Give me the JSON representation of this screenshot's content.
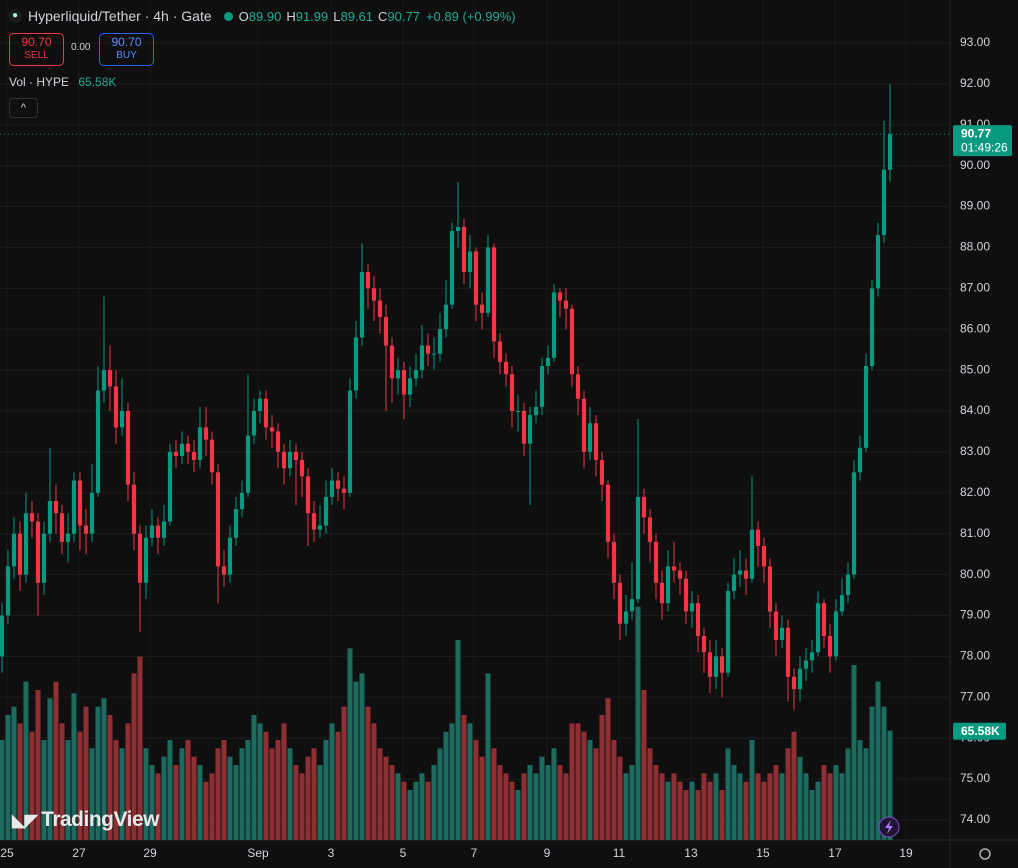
{
  "legend": {
    "symbol": "Hyperliquid/Tether · 4h · Gate",
    "ohlc": [
      {
        "key": "O",
        "value": "89.90"
      },
      {
        "key": "H",
        "value": "91.99"
      },
      {
        "key": "L",
        "value": "89.61"
      },
      {
        "key": "C",
        "value": "90.77"
      }
    ],
    "change": "+0.89 (+0.99%)",
    "sell_price": "90.70",
    "sell": "SELL",
    "spread": "0.00",
    "buy_price": "90.70",
    "buy": "BUY",
    "volume_name": "Vol · HYPE",
    "volume_value": "65.58K"
  },
  "countdown": "01:49:26",
  "volume_axis_label": "65.58K",
  "logo": "TradingView",
  "chart_data": {
    "type": "candlestick",
    "up_color": "#089981",
    "down_color": "#f23645",
    "volume_up_color": "#1d6a5f",
    "volume_down_color": "#8e2f34",
    "grid": true,
    "ylim": [
      73.51,
      94.05
    ],
    "yticks": [
      {
        "value": 74,
        "label": "74.00"
      },
      {
        "value": 75,
        "label": "75.00"
      },
      {
        "value": 76,
        "label": "76.00"
      },
      {
        "value": 77,
        "label": "77.00"
      },
      {
        "value": 78,
        "label": "78.00"
      },
      {
        "value": 79,
        "label": "79.00"
      },
      {
        "value": 80,
        "label": "80.00"
      },
      {
        "value": 81,
        "label": "81.00"
      },
      {
        "value": 82,
        "label": "82.00"
      },
      {
        "value": 83,
        "label": "83.00"
      },
      {
        "value": 84,
        "label": "84.00"
      },
      {
        "value": 85,
        "label": "85.00"
      },
      {
        "value": 86,
        "label": "86.00"
      },
      {
        "value": 87,
        "label": "87.00"
      },
      {
        "value": 88,
        "label": "88.00"
      },
      {
        "value": 89,
        "label": "89.00"
      },
      {
        "value": 90,
        "label": "90.00"
      },
      {
        "value": 91,
        "label": "91.00"
      },
      {
        "value": 92,
        "label": "92.00"
      },
      {
        "value": 93,
        "label": "93.00"
      }
    ],
    "xlim": [
      -0.33,
      158
    ],
    "xticks": [
      {
        "value": 0.83,
        "label": "25"
      },
      {
        "value": 12.83,
        "label": "27"
      },
      {
        "value": 24.67,
        "label": "29"
      },
      {
        "value": 42.67,
        "label": "Sep"
      },
      {
        "value": 54.83,
        "label": "3"
      },
      {
        "value": 66.83,
        "label": "5"
      },
      {
        "value": 78.67,
        "label": "7"
      },
      {
        "value": 90.83,
        "label": "9"
      },
      {
        "value": 102.83,
        "label": "11"
      },
      {
        "value": 114.83,
        "label": "13"
      },
      {
        "value": 126.83,
        "label": "15"
      },
      {
        "value": 138.83,
        "label": "17"
      },
      {
        "value": 150.67,
        "label": "19"
      }
    ],
    "volume_ylim": [
      0,
      240000
    ],
    "open": [
      78.0,
      79.0,
      80.2,
      81.0,
      80.0,
      81.5,
      81.3,
      79.8,
      81.0,
      81.8,
      81.5,
      80.8,
      81.0,
      82.3,
      81.2,
      81.0,
      82.0,
      84.5,
      85.0,
      84.6,
      83.6,
      84.0,
      82.2,
      81.0,
      79.8,
      80.9,
      81.2,
      80.9,
      81.3,
      83.0,
      82.9,
      83.2,
      83.0,
      82.8,
      83.6,
      83.3,
      82.5,
      80.2,
      80.0,
      80.9,
      81.6,
      82.0,
      83.4,
      84.0,
      84.3,
      83.6,
      83.5,
      83.0,
      82.6,
      83.0,
      82.8,
      82.4,
      81.5,
      81.1,
      81.2,
      81.9,
      82.3,
      82.1,
      82.0,
      84.5,
      85.8,
      87.4,
      87.0,
      86.7,
      86.3,
      85.6,
      84.8,
      85.0,
      84.4,
      84.8,
      85.0,
      85.6,
      85.4,
      85.4,
      86.0,
      86.6,
      88.4,
      88.5,
      87.4,
      87.9,
      86.6,
      86.4,
      88.0,
      85.7,
      85.2,
      84.9,
      84.0,
      84.0,
      83.2,
      83.9,
      84.1,
      85.1,
      85.3,
      86.9,
      86.7,
      86.5,
      84.9,
      84.3,
      83.0,
      83.7,
      82.8,
      82.2,
      80.8,
      79.8,
      78.8,
      79.1,
      79.4,
      81.9,
      81.4,
      80.8,
      79.8,
      79.3,
      80.2,
      80.1,
      79.9,
      79.1,
      79.3,
      78.5,
      78.1,
      77.5,
      78.0,
      77.6,
      79.6,
      80.0,
      80.1,
      79.9,
      81.1,
      80.7,
      80.2,
      79.1,
      78.4,
      78.7,
      77.5,
      77.2,
      77.7,
      77.9,
      78.1,
      79.3,
      78.5,
      78.0,
      79.1,
      79.5,
      80.0,
      82.5,
      83.1,
      85.1,
      87.0,
      88.3,
      89.9
    ],
    "high": [
      79.3,
      80.6,
      81.4,
      81.3,
      82.0,
      81.8,
      81.5,
      81.3,
      83.1,
      82.2,
      81.7,
      81.5,
      82.5,
      82.5,
      81.6,
      82.7,
      85.1,
      86.8,
      85.6,
      85.0,
      84.8,
      84.2,
      82.5,
      81.2,
      81.2,
      81.6,
      81.4,
      81.7,
      83.2,
      83.3,
      83.5,
      83.4,
      83.3,
      84.1,
      84.1,
      83.5,
      82.7,
      80.6,
      81.2,
      81.9,
      82.3,
      84.9,
      84.3,
      84.5,
      84.5,
      83.9,
      83.7,
      83.2,
      83.3,
      83.2,
      83.0,
      82.6,
      81.8,
      81.7,
      82.3,
      82.6,
      82.5,
      82.4,
      84.8,
      86.2,
      88.1,
      87.6,
      87.3,
      87.0,
      86.6,
      85.8,
      85.3,
      85.2,
      85.1,
      85.4,
      86.1,
      85.9,
      85.8,
      86.4,
      87.2,
      88.6,
      89.6,
      88.7,
      88.3,
      88.0,
      86.9,
      88.3,
      88.1,
      85.9,
      85.4,
      85.1,
      84.4,
      84.2,
      84.1,
      84.5,
      85.3,
      85.6,
      87.1,
      87.0,
      87.0,
      86.6,
      85.1,
      84.5,
      84.1,
      83.9,
      83.0,
      82.3,
      81.0,
      80.0,
      79.5,
      80.3,
      83.8,
      82.1,
      81.6,
      81.0,
      80.1,
      80.6,
      80.8,
      80.3,
      80.1,
      79.6,
      79.5,
      78.7,
      78.4,
      78.4,
      78.2,
      79.8,
      80.4,
      80.6,
      80.4,
      82.4,
      81.3,
      80.9,
      80.4,
      79.3,
      79.0,
      78.9,
      77.7,
      78.0,
      78.2,
      78.4,
      79.6,
      79.4,
      78.8,
      79.4,
      79.9,
      80.3,
      82.8,
      83.4,
      85.4,
      87.2,
      88.6,
      91.1,
      91.99
    ],
    "low": [
      77.6,
      78.8,
      79.9,
      79.6,
      79.8,
      80.9,
      79.0,
      79.5,
      80.8,
      81.0,
      80.5,
      80.3,
      80.8,
      80.6,
      80.5,
      80.8,
      81.9,
      84.2,
      84.0,
      83.2,
      83.4,
      81.8,
      80.6,
      78.6,
      79.4,
      80.7,
      80.5,
      80.7,
      81.2,
      82.6,
      82.7,
      82.7,
      82.5,
      82.6,
      82.9,
      82.2,
      79.3,
      79.7,
      79.8,
      80.7,
      81.4,
      81.9,
      83.2,
      83.7,
      83.3,
      83.1,
      82.6,
      82.2,
      82.4,
      81.7,
      81.9,
      80.7,
      80.8,
      80.9,
      81.0,
      81.7,
      81.8,
      81.6,
      81.9,
      84.3,
      85.6,
      86.5,
      86.2,
      85.9,
      84.0,
      84.2,
      84.4,
      83.8,
      84.1,
      84.6,
      84.8,
      85.1,
      85.0,
      85.2,
      85.8,
      86.5,
      88.0,
      87.1,
      87.0,
      86.2,
      86.0,
      86.3,
      85.3,
      84.9,
      84.6,
      83.6,
      83.5,
      82.9,
      81.7,
      83.7,
      83.9,
      84.9,
      85.2,
      86.3,
      86.0,
      84.6,
      83.9,
      82.6,
      82.8,
      82.4,
      81.8,
      80.4,
      79.4,
      78.4,
      78.5,
      78.9,
      79.3,
      81.0,
      80.3,
      79.4,
      78.9,
      79.1,
      79.8,
      79.5,
      78.8,
      78.7,
      78.1,
      77.6,
      77.1,
      77.2,
      77.0,
      77.5,
      79.4,
      79.7,
      79.5,
      79.8,
      80.2,
      79.8,
      78.7,
      78.0,
      78.2,
      76.9,
      76.7,
      76.9,
      77.4,
      77.6,
      78.0,
      78.2,
      77.6,
      77.9,
      79.0,
      79.3,
      79.9,
      82.3,
      83.0,
      85.0,
      86.8,
      88.1,
      89.61
    ],
    "close": [
      79.0,
      80.2,
      81.0,
      80.0,
      81.5,
      81.3,
      79.8,
      81.0,
      81.8,
      81.5,
      80.8,
      81.0,
      82.3,
      81.2,
      81.0,
      82.0,
      84.5,
      85.0,
      84.6,
      83.6,
      84.0,
      82.2,
      81.0,
      79.8,
      80.9,
      81.2,
      80.9,
      81.3,
      83.0,
      82.9,
      83.2,
      83.0,
      82.8,
      83.6,
      83.3,
      82.5,
      80.2,
      80.0,
      80.9,
      81.6,
      82.0,
      83.4,
      84.0,
      84.3,
      83.6,
      83.5,
      83.0,
      82.6,
      83.0,
      82.8,
      82.4,
      81.5,
      81.1,
      81.2,
      81.9,
      82.3,
      82.1,
      82.0,
      84.5,
      85.8,
      87.4,
      87.0,
      86.7,
      86.3,
      85.6,
      84.8,
      85.0,
      84.4,
      84.8,
      85.0,
      85.6,
      85.4,
      85.4,
      86.0,
      86.6,
      88.4,
      88.5,
      87.4,
      87.9,
      86.6,
      86.4,
      88.0,
      85.7,
      85.2,
      84.9,
      84.0,
      84.0,
      83.2,
      83.9,
      84.1,
      85.1,
      85.3,
      86.9,
      86.7,
      86.5,
      84.9,
      84.3,
      83.0,
      83.7,
      82.8,
      82.2,
      80.8,
      79.8,
      78.8,
      79.1,
      79.4,
      81.9,
      81.4,
      80.8,
      79.8,
      79.3,
      80.2,
      80.1,
      79.9,
      79.1,
      79.3,
      78.5,
      78.1,
      77.5,
      78.0,
      77.6,
      79.6,
      80.0,
      80.1,
      79.9,
      81.1,
      80.7,
      80.2,
      79.1,
      78.4,
      78.7,
      77.5,
      77.2,
      77.7,
      77.9,
      78.1,
      79.3,
      78.5,
      78.0,
      79.1,
      79.5,
      80.0,
      82.5,
      83.1,
      85.1,
      87.0,
      88.3,
      89.9,
      90.77
    ],
    "volume": [
      60000,
      75000,
      80000,
      70000,
      95000,
      65000,
      90000,
      60000,
      85000,
      95000,
      70000,
      60000,
      88000,
      65000,
      80000,
      55000,
      80000,
      85000,
      75000,
      60000,
      55000,
      70000,
      100000,
      110000,
      55000,
      45000,
      40000,
      50000,
      60000,
      45000,
      55000,
      60000,
      50000,
      45000,
      35000,
      40000,
      55000,
      60000,
      50000,
      45000,
      55000,
      60000,
      75000,
      70000,
      65000,
      55000,
      60000,
      70000,
      55000,
      45000,
      40000,
      50000,
      55000,
      45000,
      60000,
      70000,
      65000,
      80000,
      115000,
      95000,
      100000,
      80000,
      70000,
      55000,
      50000,
      45000,
      40000,
      35000,
      30000,
      35000,
      40000,
      35000,
      45000,
      55000,
      65000,
      70000,
      120000,
      75000,
      70000,
      60000,
      50000,
      100000,
      55000,
      45000,
      40000,
      35000,
      30000,
      40000,
      45000,
      40000,
      50000,
      45000,
      55000,
      45000,
      40000,
      70000,
      70000,
      65000,
      60000,
      55000,
      75000,
      85000,
      60000,
      50000,
      40000,
      45000,
      140000,
      90000,
      55000,
      45000,
      40000,
      35000,
      40000,
      35000,
      30000,
      35000,
      30000,
      40000,
      35000,
      40000,
      30000,
      55000,
      45000,
      40000,
      35000,
      60000,
      40000,
      35000,
      40000,
      45000,
      40000,
      55000,
      65000,
      50000,
      40000,
      30000,
      35000,
      45000,
      40000,
      45000,
      40000,
      55000,
      105000,
      60000,
      55000,
      80000,
      95000,
      80000,
      65580
    ]
  }
}
